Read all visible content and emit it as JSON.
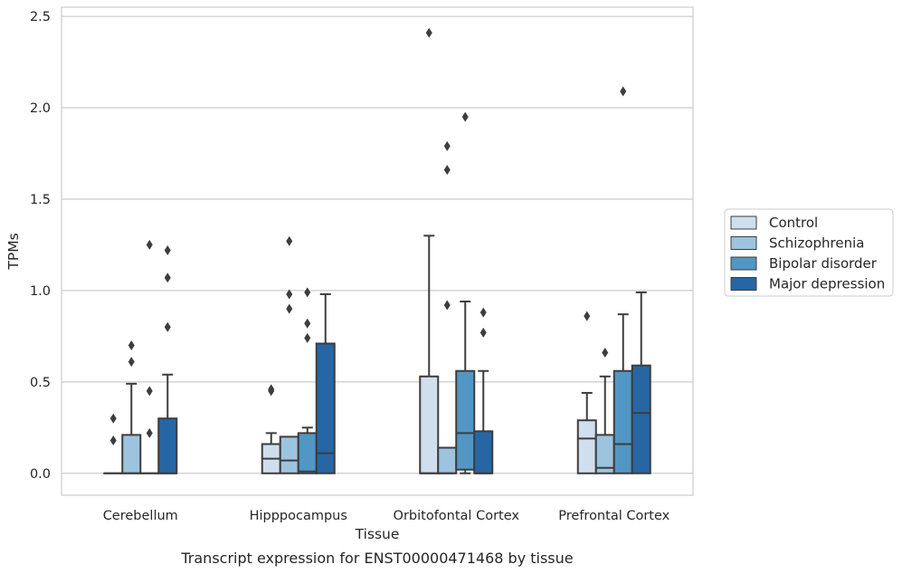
{
  "chart_data": {
    "type": "box",
    "caption": "Transcript expression for ENST00000471468 by tissue",
    "xlabel": "Tissue",
    "ylabel": "TPMs",
    "ylim": [
      -0.12,
      2.55
    ],
    "yticks": [
      "0.0",
      "0.5",
      "1.0",
      "1.5",
      "2.0",
      "2.5"
    ],
    "grid": true,
    "legend_position": "right",
    "categories": [
      "Cerebellum",
      "Hipppocampus",
      "Orbitofontal Cortex",
      "Prefrontal Cortex"
    ],
    "series": [
      {
        "name": "Control",
        "color": "#cfdfee",
        "boxes": [
          {
            "q1": 0.0,
            "median": 0.0,
            "q3": 0.0,
            "whislo": 0.0,
            "whishi": 0.0,
            "fliers": [
              0.18,
              0.3
            ]
          },
          {
            "q1": 0.0,
            "median": 0.08,
            "q3": 0.16,
            "whislo": 0.0,
            "whishi": 0.22,
            "fliers": [
              0.45,
              0.46
            ]
          },
          {
            "q1": 0.0,
            "median": 0.0,
            "q3": 0.53,
            "whislo": 0.0,
            "whishi": 1.3,
            "fliers": [
              2.41
            ]
          },
          {
            "q1": 0.0,
            "median": 0.19,
            "q3": 0.29,
            "whislo": 0.0,
            "whishi": 0.44,
            "fliers": [
              0.86
            ]
          }
        ]
      },
      {
        "name": "Schizophrenia",
        "color": "#9dc4de",
        "boxes": [
          {
            "q1": 0.0,
            "median": 0.0,
            "q3": 0.21,
            "whislo": 0.0,
            "whishi": 0.49,
            "fliers": [
              0.61,
              0.7
            ]
          },
          {
            "q1": 0.0,
            "median": 0.07,
            "q3": 0.2,
            "whislo": 0.0,
            "whishi": 0.2,
            "fliers": [
              0.9,
              0.98,
              1.27
            ]
          },
          {
            "q1": 0.0,
            "median": 0.0,
            "q3": 0.14,
            "whislo": 0.0,
            "whishi": 0.14,
            "fliers": [
              0.92,
              1.66,
              1.79
            ]
          },
          {
            "q1": 0.0,
            "median": 0.03,
            "q3": 0.21,
            "whislo": 0.0,
            "whishi": 0.53,
            "fliers": [
              0.66
            ]
          }
        ]
      },
      {
        "name": "Bipolar disorder",
        "color": "#5296c5",
        "boxes": [
          {
            "q1": 0.0,
            "median": 0.0,
            "q3": 0.0,
            "whislo": 0.0,
            "whishi": 0.0,
            "fliers": [
              0.22,
              0.45,
              1.25
            ]
          },
          {
            "q1": 0.0,
            "median": 0.01,
            "q3": 0.22,
            "whislo": 0.0,
            "whishi": 0.25,
            "fliers": [
              0.74,
              0.82,
              0.99
            ]
          },
          {
            "q1": 0.02,
            "median": 0.22,
            "q3": 0.56,
            "whislo": 0.0,
            "whishi": 0.94,
            "fliers": [
              1.95
            ]
          },
          {
            "q1": 0.0,
            "median": 0.16,
            "q3": 0.56,
            "whislo": 0.0,
            "whishi": 0.87,
            "fliers": [
              2.09
            ]
          }
        ]
      },
      {
        "name": "Major depression",
        "color": "#2766a4",
        "boxes": [
          {
            "q1": 0.0,
            "median": 0.0,
            "q3": 0.3,
            "whislo": 0.0,
            "whishi": 0.54,
            "fliers": [
              0.8,
              1.07,
              1.22
            ]
          },
          {
            "q1": 0.0,
            "median": 0.11,
            "q3": 0.71,
            "whislo": 0.0,
            "whishi": 0.98,
            "fliers": []
          },
          {
            "q1": 0.0,
            "median": 0.0,
            "q3": 0.23,
            "whislo": 0.0,
            "whishi": 0.56,
            "fliers": [
              0.77,
              0.88
            ]
          },
          {
            "q1": 0.0,
            "median": 0.33,
            "q3": 0.59,
            "whislo": 0.0,
            "whishi": 0.99,
            "fliers": []
          }
        ]
      }
    ]
  }
}
